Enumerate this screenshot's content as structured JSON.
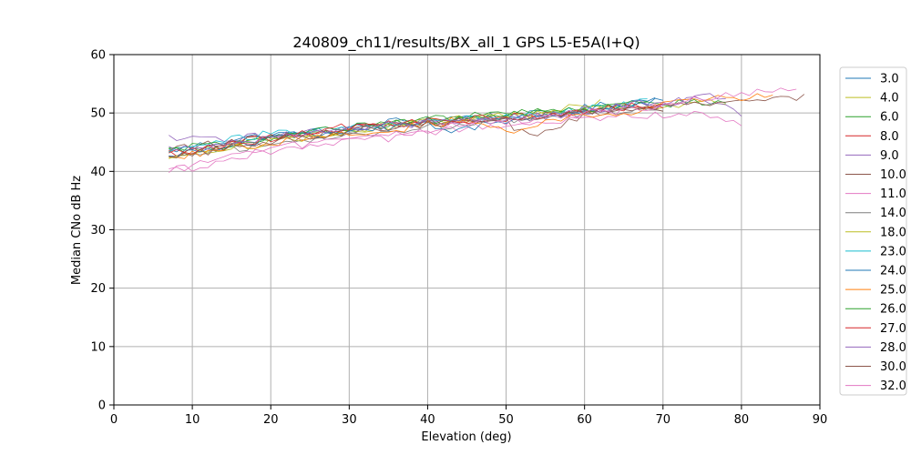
{
  "chart_data": {
    "type": "line",
    "title": "240809_ch11/results/BX_all_1 GPS L5-E5A(I+Q)",
    "xlabel": "Elevation (deg)",
    "ylabel": "Median CNo dB Hz",
    "xlim": [
      0,
      90
    ],
    "ylim": [
      0,
      60
    ],
    "xticks": [
      "0",
      "10",
      "20",
      "30",
      "40",
      "50",
      "60",
      "70",
      "80",
      "90"
    ],
    "yticks": [
      "0",
      "10",
      "20",
      "30",
      "40",
      "50",
      "60"
    ],
    "grid": true,
    "legend_position": "right",
    "series": [
      {
        "name": "3.0",
        "color": "#1f77b4",
        "x_start": 7,
        "x_end": 69,
        "points": [
          [
            7,
            43.5
          ],
          [
            15,
            45.5
          ],
          [
            20,
            46.2
          ],
          [
            30,
            47.2
          ],
          [
            35,
            48.5
          ],
          [
            40,
            49.0
          ],
          [
            45,
            49.3
          ],
          [
            50,
            49.5
          ],
          [
            55,
            49.8
          ],
          [
            60,
            50.8
          ],
          [
            65,
            51.8
          ],
          [
            69,
            52.5
          ]
        ]
      },
      {
        "name": "4.0",
        "color": "#bcbd22",
        "x_start": 7,
        "x_end": 78,
        "points": [
          [
            7,
            42.0
          ],
          [
            15,
            44.5
          ],
          [
            20,
            45.5
          ],
          [
            30,
            47.0
          ],
          [
            35,
            47.8
          ],
          [
            40,
            48.5
          ],
          [
            45,
            49.0
          ],
          [
            50,
            49.5
          ],
          [
            55,
            50.0
          ],
          [
            60,
            50.5
          ],
          [
            65,
            51.0
          ],
          [
            70,
            51.2
          ],
          [
            75,
            51.5
          ],
          [
            78,
            51.8
          ]
        ]
      },
      {
        "name": "6.0",
        "color": "#2ca02c",
        "x_start": 7,
        "x_end": 78,
        "points": [
          [
            7,
            43.5
          ],
          [
            15,
            44.5
          ],
          [
            20,
            45.5
          ],
          [
            30,
            47.0
          ],
          [
            35,
            48.0
          ],
          [
            40,
            48.8
          ],
          [
            45,
            49.5
          ],
          [
            50,
            49.8
          ],
          [
            55,
            50.2
          ],
          [
            60,
            50.8
          ],
          [
            65,
            51.2
          ],
          [
            70,
            51.5
          ],
          [
            75,
            52.0
          ],
          [
            78,
            52.2
          ]
        ]
      },
      {
        "name": "8.0",
        "color": "#d62728",
        "x_start": 7,
        "x_end": 70,
        "points": [
          [
            7,
            43.0
          ],
          [
            15,
            45.0
          ],
          [
            20,
            46.0
          ],
          [
            30,
            47.5
          ],
          [
            35,
            48.0
          ],
          [
            40,
            48.3
          ],
          [
            45,
            48.8
          ],
          [
            50,
            49.2
          ],
          [
            55,
            49.8
          ],
          [
            60,
            50.5
          ],
          [
            65,
            51.0
          ],
          [
            70,
            51.5
          ]
        ]
      },
      {
        "name": "9.0",
        "color": "#9467bd",
        "x_start": 7,
        "x_end": 80,
        "points": [
          [
            7,
            45.5
          ],
          [
            15,
            45.5
          ],
          [
            20,
            46.3
          ],
          [
            30,
            47.3
          ],
          [
            35,
            47.8
          ],
          [
            40,
            48.2
          ],
          [
            45,
            48.6
          ],
          [
            50,
            49.0
          ],
          [
            55,
            49.5
          ],
          [
            60,
            50.2
          ],
          [
            65,
            51.0
          ],
          [
            70,
            51.5
          ],
          [
            75,
            52.5
          ],
          [
            80,
            50.0
          ]
        ]
      },
      {
        "name": "10.0",
        "color": "#8c564b",
        "x_start": 7,
        "x_end": 88,
        "points": [
          [
            7,
            44.0
          ],
          [
            15,
            45.0
          ],
          [
            20,
            45.5
          ],
          [
            30,
            47.0
          ],
          [
            35,
            47.5
          ],
          [
            40,
            48.0
          ],
          [
            45,
            48.5
          ],
          [
            50,
            48.5
          ],
          [
            53,
            46.0
          ],
          [
            55,
            46.5
          ],
          [
            60,
            49.5
          ],
          [
            65,
            50.5
          ],
          [
            70,
            51.0
          ],
          [
            75,
            51.5
          ],
          [
            80,
            51.8
          ],
          [
            85,
            52.5
          ],
          [
            88,
            52.8
          ]
        ]
      },
      {
        "name": "11.0",
        "color": "#e377c2",
        "x_start": 7,
        "x_end": 80,
        "points": [
          [
            7,
            40.3
          ],
          [
            10,
            40.5
          ],
          [
            15,
            42.5
          ],
          [
            20,
            43.5
          ],
          [
            30,
            45.0
          ],
          [
            35,
            45.5
          ],
          [
            40,
            46.5
          ],
          [
            45,
            47.5
          ],
          [
            50,
            47.8
          ],
          [
            55,
            48.0
          ],
          [
            60,
            49.0
          ],
          [
            65,
            49.5
          ],
          [
            70,
            49.8
          ],
          [
            75,
            49.8
          ],
          [
            80,
            47.8
          ]
        ]
      },
      {
        "name": "14.0",
        "color": "#7f7f7f",
        "x_start": 7,
        "x_end": 70,
        "points": [
          [
            7,
            43.0
          ],
          [
            15,
            44.0
          ],
          [
            20,
            44.5
          ],
          [
            30,
            46.2
          ],
          [
            35,
            47.0
          ],
          [
            40,
            47.5
          ],
          [
            45,
            48.2
          ],
          [
            50,
            48.8
          ],
          [
            55,
            49.2
          ],
          [
            60,
            50.0
          ],
          [
            65,
            50.5
          ],
          [
            70,
            50.8
          ]
        ]
      },
      {
        "name": "18.0",
        "color": "#bcbd22",
        "x_start": 7,
        "x_end": 62,
        "points": [
          [
            7,
            42.5
          ],
          [
            15,
            44.0
          ],
          [
            20,
            45.0
          ],
          [
            30,
            47.0
          ],
          [
            35,
            47.8
          ],
          [
            40,
            48.5
          ],
          [
            45,
            49.0
          ],
          [
            50,
            49.5
          ],
          [
            55,
            50.0
          ],
          [
            60,
            51.5
          ],
          [
            62,
            51.8
          ]
        ]
      },
      {
        "name": "23.0",
        "color": "#17becf",
        "x_start": 7,
        "x_end": 68,
        "points": [
          [
            7,
            43.5
          ],
          [
            10,
            44.2
          ],
          [
            15,
            45.5
          ],
          [
            20,
            46.5
          ],
          [
            30,
            47.5
          ],
          [
            35,
            48.0
          ],
          [
            40,
            48.5
          ],
          [
            45,
            49.0
          ],
          [
            50,
            49.3
          ],
          [
            55,
            49.8
          ],
          [
            60,
            50.8
          ],
          [
            65,
            51.5
          ],
          [
            68,
            51.8
          ]
        ]
      },
      {
        "name": "24.0",
        "color": "#1f77b4",
        "x_start": 7,
        "x_end": 70,
        "points": [
          [
            7,
            42.8
          ],
          [
            15,
            44.5
          ],
          [
            20,
            45.5
          ],
          [
            30,
            47.0
          ],
          [
            35,
            47.5
          ],
          [
            40,
            48.0
          ],
          [
            43,
            46.3
          ],
          [
            45,
            47.5
          ],
          [
            50,
            48.5
          ],
          [
            55,
            49.2
          ],
          [
            60,
            50.0
          ],
          [
            65,
            51.5
          ],
          [
            70,
            52.0
          ]
        ]
      },
      {
        "name": "25.0",
        "color": "#ff7f0e",
        "x_start": 7,
        "x_end": 84,
        "points": [
          [
            7,
            42.5
          ],
          [
            15,
            44.0
          ],
          [
            20,
            44.8
          ],
          [
            25,
            46.0
          ],
          [
            30,
            46.5
          ],
          [
            35,
            47.0
          ],
          [
            40,
            48.0
          ],
          [
            45,
            49.0
          ],
          [
            50,
            46.5
          ],
          [
            55,
            48.5
          ],
          [
            60,
            49.5
          ],
          [
            65,
            50.0
          ],
          [
            70,
            51.5
          ],
          [
            75,
            52.0
          ],
          [
            80,
            52.8
          ],
          [
            84,
            53.5
          ]
        ]
      },
      {
        "name": "26.0",
        "color": "#2ca02c",
        "x_start": 7,
        "x_end": 68,
        "points": [
          [
            7,
            43.8
          ],
          [
            15,
            44.8
          ],
          [
            20,
            45.8
          ],
          [
            30,
            47.5
          ],
          [
            35,
            48.2
          ],
          [
            40,
            48.8
          ],
          [
            45,
            49.3
          ],
          [
            50,
            49.8
          ],
          [
            55,
            50.3
          ],
          [
            60,
            50.8
          ],
          [
            65,
            51.3
          ],
          [
            68,
            51.5
          ]
        ]
      },
      {
        "name": "27.0",
        "color": "#d62728",
        "x_start": 7,
        "x_end": 70,
        "points": [
          [
            7,
            43.0
          ],
          [
            15,
            44.5
          ],
          [
            20,
            45.5
          ],
          [
            30,
            47.8
          ],
          [
            35,
            48.3
          ],
          [
            40,
            48.5
          ],
          [
            45,
            49.0
          ],
          [
            50,
            49.0
          ],
          [
            55,
            49.5
          ],
          [
            60,
            50.3
          ],
          [
            65,
            51.0
          ],
          [
            70,
            51.5
          ]
        ]
      },
      {
        "name": "28.0",
        "color": "#9467bd",
        "x_start": 7,
        "x_end": 78,
        "points": [
          [
            7,
            44.0
          ],
          [
            15,
            44.8
          ],
          [
            20,
            45.8
          ],
          [
            30,
            47.2
          ],
          [
            35,
            47.8
          ],
          [
            40,
            48.2
          ],
          [
            45,
            48.8
          ],
          [
            50,
            49.2
          ],
          [
            55,
            49.8
          ],
          [
            60,
            50.5
          ],
          [
            65,
            51.2
          ],
          [
            70,
            51.8
          ],
          [
            75,
            52.5
          ],
          [
            78,
            53.0
          ]
        ]
      },
      {
        "name": "30.0",
        "color": "#8c564b",
        "x_start": 7,
        "x_end": 70,
        "points": [
          [
            7,
            42.2
          ],
          [
            15,
            44.0
          ],
          [
            20,
            45.2
          ],
          [
            30,
            46.8
          ],
          [
            35,
            47.5
          ],
          [
            40,
            48.0
          ],
          [
            45,
            48.5
          ],
          [
            50,
            49.0
          ],
          [
            55,
            49.5
          ],
          [
            60,
            50.2
          ],
          [
            65,
            50.5
          ],
          [
            70,
            50.5
          ]
        ]
      },
      {
        "name": "32.0",
        "color": "#e377c2",
        "x_start": 7,
        "x_end": 87,
        "points": [
          [
            7,
            40.0
          ],
          [
            15,
            43.0
          ],
          [
            20,
            44.0
          ],
          [
            30,
            45.5
          ],
          [
            35,
            46.2
          ],
          [
            40,
            47.2
          ],
          [
            45,
            48.0
          ],
          [
            50,
            48.5
          ],
          [
            55,
            49.2
          ],
          [
            60,
            50.0
          ],
          [
            65,
            50.5
          ],
          [
            70,
            51.5
          ],
          [
            75,
            52.5
          ],
          [
            80,
            53.5
          ],
          [
            85,
            54.0
          ],
          [
            87,
            53.8
          ]
        ]
      }
    ]
  }
}
